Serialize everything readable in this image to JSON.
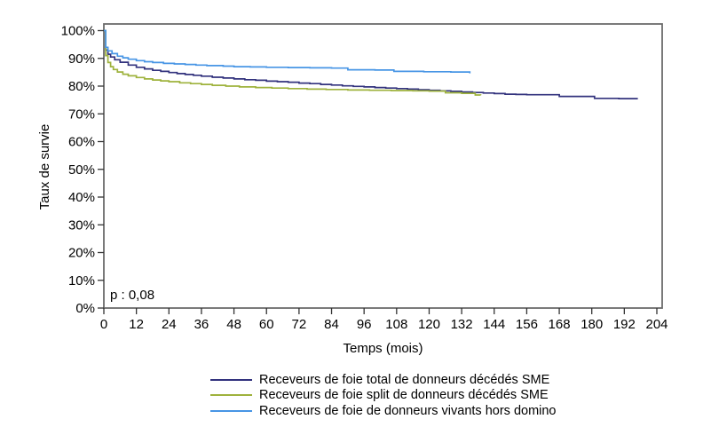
{
  "figure": {
    "background": "#ffffff",
    "frame_color": "#6b6b6b",
    "tick_color": "#333333",
    "text_color": "#000000"
  },
  "chart_data": {
    "type": "line",
    "subtype": "kaplan-meier-step",
    "title": "",
    "xlabel": "Temps (mois)",
    "ylabel": "Taux de survie",
    "xlim": [
      0,
      204
    ],
    "ylim": [
      0,
      100
    ],
    "grid": false,
    "legend_position": "bottom",
    "x_ticks": [
      0,
      12,
      24,
      36,
      48,
      60,
      72,
      84,
      96,
      108,
      120,
      132,
      144,
      156,
      168,
      180,
      192,
      204
    ],
    "x_tick_labels": [
      "0",
      "12",
      "24",
      "36",
      "48",
      "60",
      "72",
      "84",
      "96",
      "108",
      "120",
      "132",
      "144",
      "156",
      "168",
      "180",
      "192",
      "204"
    ],
    "y_ticks": [
      0,
      10,
      20,
      30,
      40,
      50,
      60,
      70,
      80,
      90,
      100
    ],
    "y_tick_labels": [
      "0%",
      "10%",
      "20%",
      "30%",
      "40%",
      "50%",
      "60%",
      "70%",
      "80%",
      "90%",
      "100%"
    ],
    "annotation": {
      "text": "p : 0,08",
      "x_month": 2,
      "y_percent": 4
    },
    "series": [
      {
        "name": "Receveurs de foie total de donneurs décédés SME",
        "color": "#32327d",
        "points": [
          [
            0,
            100
          ],
          [
            0.7,
            93
          ],
          [
            1.5,
            91.5
          ],
          [
            2.5,
            90.5
          ],
          [
            4,
            89.5
          ],
          [
            6,
            88.6
          ],
          [
            9,
            87.6
          ],
          [
            12,
            86.8
          ],
          [
            15,
            86.2
          ],
          [
            18,
            85.7
          ],
          [
            21,
            85.3
          ],
          [
            24,
            84.9
          ],
          [
            27,
            84.5
          ],
          [
            30,
            84.2
          ],
          [
            33,
            83.9
          ],
          [
            36,
            83.6
          ],
          [
            40,
            83.2
          ],
          [
            44,
            82.9
          ],
          [
            48,
            82.6
          ],
          [
            52,
            82.3
          ],
          [
            56,
            82.1
          ],
          [
            60,
            81.8
          ],
          [
            64,
            81.6
          ],
          [
            68,
            81.4
          ],
          [
            72,
            81.1
          ],
          [
            76,
            80.9
          ],
          [
            80,
            80.6
          ],
          [
            84,
            80.4
          ],
          [
            88,
            80.1
          ],
          [
            92,
            79.9
          ],
          [
            96,
            79.7
          ],
          [
            100,
            79.5
          ],
          [
            104,
            79.3
          ],
          [
            108,
            79.1
          ],
          [
            112,
            78.9
          ],
          [
            116,
            78.7
          ],
          [
            120,
            78.5
          ],
          [
            124,
            78.3
          ],
          [
            128,
            78.1
          ],
          [
            132,
            77.9
          ],
          [
            136,
            77.7
          ],
          [
            140,
            77.5
          ],
          [
            144,
            77.3
          ],
          [
            148,
            77.1
          ],
          [
            152,
            77.0
          ],
          [
            156,
            76.9
          ],
          [
            168,
            76.3
          ],
          [
            181,
            75.6
          ],
          [
            190,
            75.5
          ],
          [
            197,
            75.5
          ]
        ]
      },
      {
        "name": "Receveurs de foie split de donneurs décédés SME",
        "color": "#9eb23c",
        "points": [
          [
            0,
            100
          ],
          [
            0.7,
            91
          ],
          [
            1.5,
            88.5
          ],
          [
            2.5,
            87
          ],
          [
            3.5,
            86
          ],
          [
            5,
            85.1
          ],
          [
            7,
            84.3
          ],
          [
            9,
            83.7
          ],
          [
            12,
            83.1
          ],
          [
            15,
            82.6
          ],
          [
            18,
            82.2
          ],
          [
            21,
            81.9
          ],
          [
            24,
            81.6
          ],
          [
            28,
            81.2
          ],
          [
            32,
            80.9
          ],
          [
            36,
            80.6
          ],
          [
            40,
            80.3
          ],
          [
            45,
            80.0
          ],
          [
            50,
            79.7
          ],
          [
            56,
            79.5
          ],
          [
            62,
            79.3
          ],
          [
            68,
            79.1
          ],
          [
            75,
            78.9
          ],
          [
            82,
            78.8
          ],
          [
            90,
            78.6
          ],
          [
            98,
            78.5
          ],
          [
            106,
            78.4
          ],
          [
            114,
            78.3
          ],
          [
            120,
            78.2
          ],
          [
            126,
            77.6
          ],
          [
            132,
            77.4
          ],
          [
            137,
            76.8
          ],
          [
            139,
            76.7
          ]
        ]
      },
      {
        "name": "Receveurs de foie de donneurs vivants hors domino",
        "color": "#4795e5",
        "points": [
          [
            0,
            100
          ],
          [
            0.7,
            94
          ],
          [
            1.5,
            92.7
          ],
          [
            3,
            91.7
          ],
          [
            5,
            90.8
          ],
          [
            7,
            90.2
          ],
          [
            9,
            89.7
          ],
          [
            12,
            89.2
          ],
          [
            15,
            88.8
          ],
          [
            18,
            88.5
          ],
          [
            22,
            88.2
          ],
          [
            26,
            88.0
          ],
          [
            30,
            87.8
          ],
          [
            34,
            87.6
          ],
          [
            38,
            87.4
          ],
          [
            44,
            87.2
          ],
          [
            48,
            87.0
          ],
          [
            54,
            86.9
          ],
          [
            60,
            86.8
          ],
          [
            68,
            86.7
          ],
          [
            76,
            86.6
          ],
          [
            84,
            86.5
          ],
          [
            90,
            85.9
          ],
          [
            100,
            85.8
          ],
          [
            107,
            85.3
          ],
          [
            118,
            85.2
          ],
          [
            128,
            85.1
          ],
          [
            134,
            85.1
          ],
          [
            135,
            84.6
          ]
        ]
      }
    ]
  }
}
